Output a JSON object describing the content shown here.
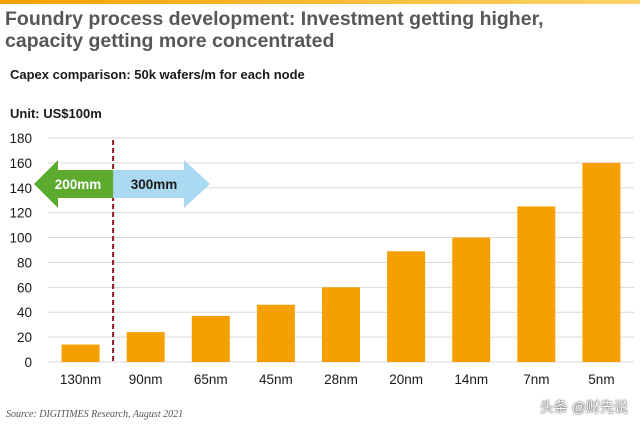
{
  "title": "Foundry process development: Investment getting higher, capacity getting more concentrated",
  "subtitle": "Capex comparison: 50k wafers/m for each node",
  "unit": "Unit: US$100m",
  "source": "Source: DIGITIMES Research, August 2021",
  "watermark": "头条 @财先说",
  "colors": {
    "bar": "#f5a000",
    "arrow_left": "#5cab2e",
    "arrow_right": "#a9daf2",
    "divider": "#8b1a1a",
    "grid": "#d9d9d9"
  },
  "annotations": {
    "left_arrow_label": "200mm",
    "right_arrow_label": "300mm"
  },
  "chart_data": {
    "type": "bar",
    "categories": [
      "130nm",
      "90nm",
      "65nm",
      "45nm",
      "28nm",
      "20nm",
      "14nm",
      "7nm",
      "5nm"
    ],
    "values": [
      14,
      24,
      37,
      46,
      60,
      89,
      100,
      125,
      160
    ],
    "title": "Capex comparison: 50k wafers/m for each node",
    "ylabel": "Unit: US$100m",
    "ylim": [
      0,
      180
    ],
    "yticks": [
      0,
      20,
      40,
      60,
      80,
      100,
      120,
      140,
      160,
      180
    ],
    "grid": true,
    "legend": "none"
  }
}
